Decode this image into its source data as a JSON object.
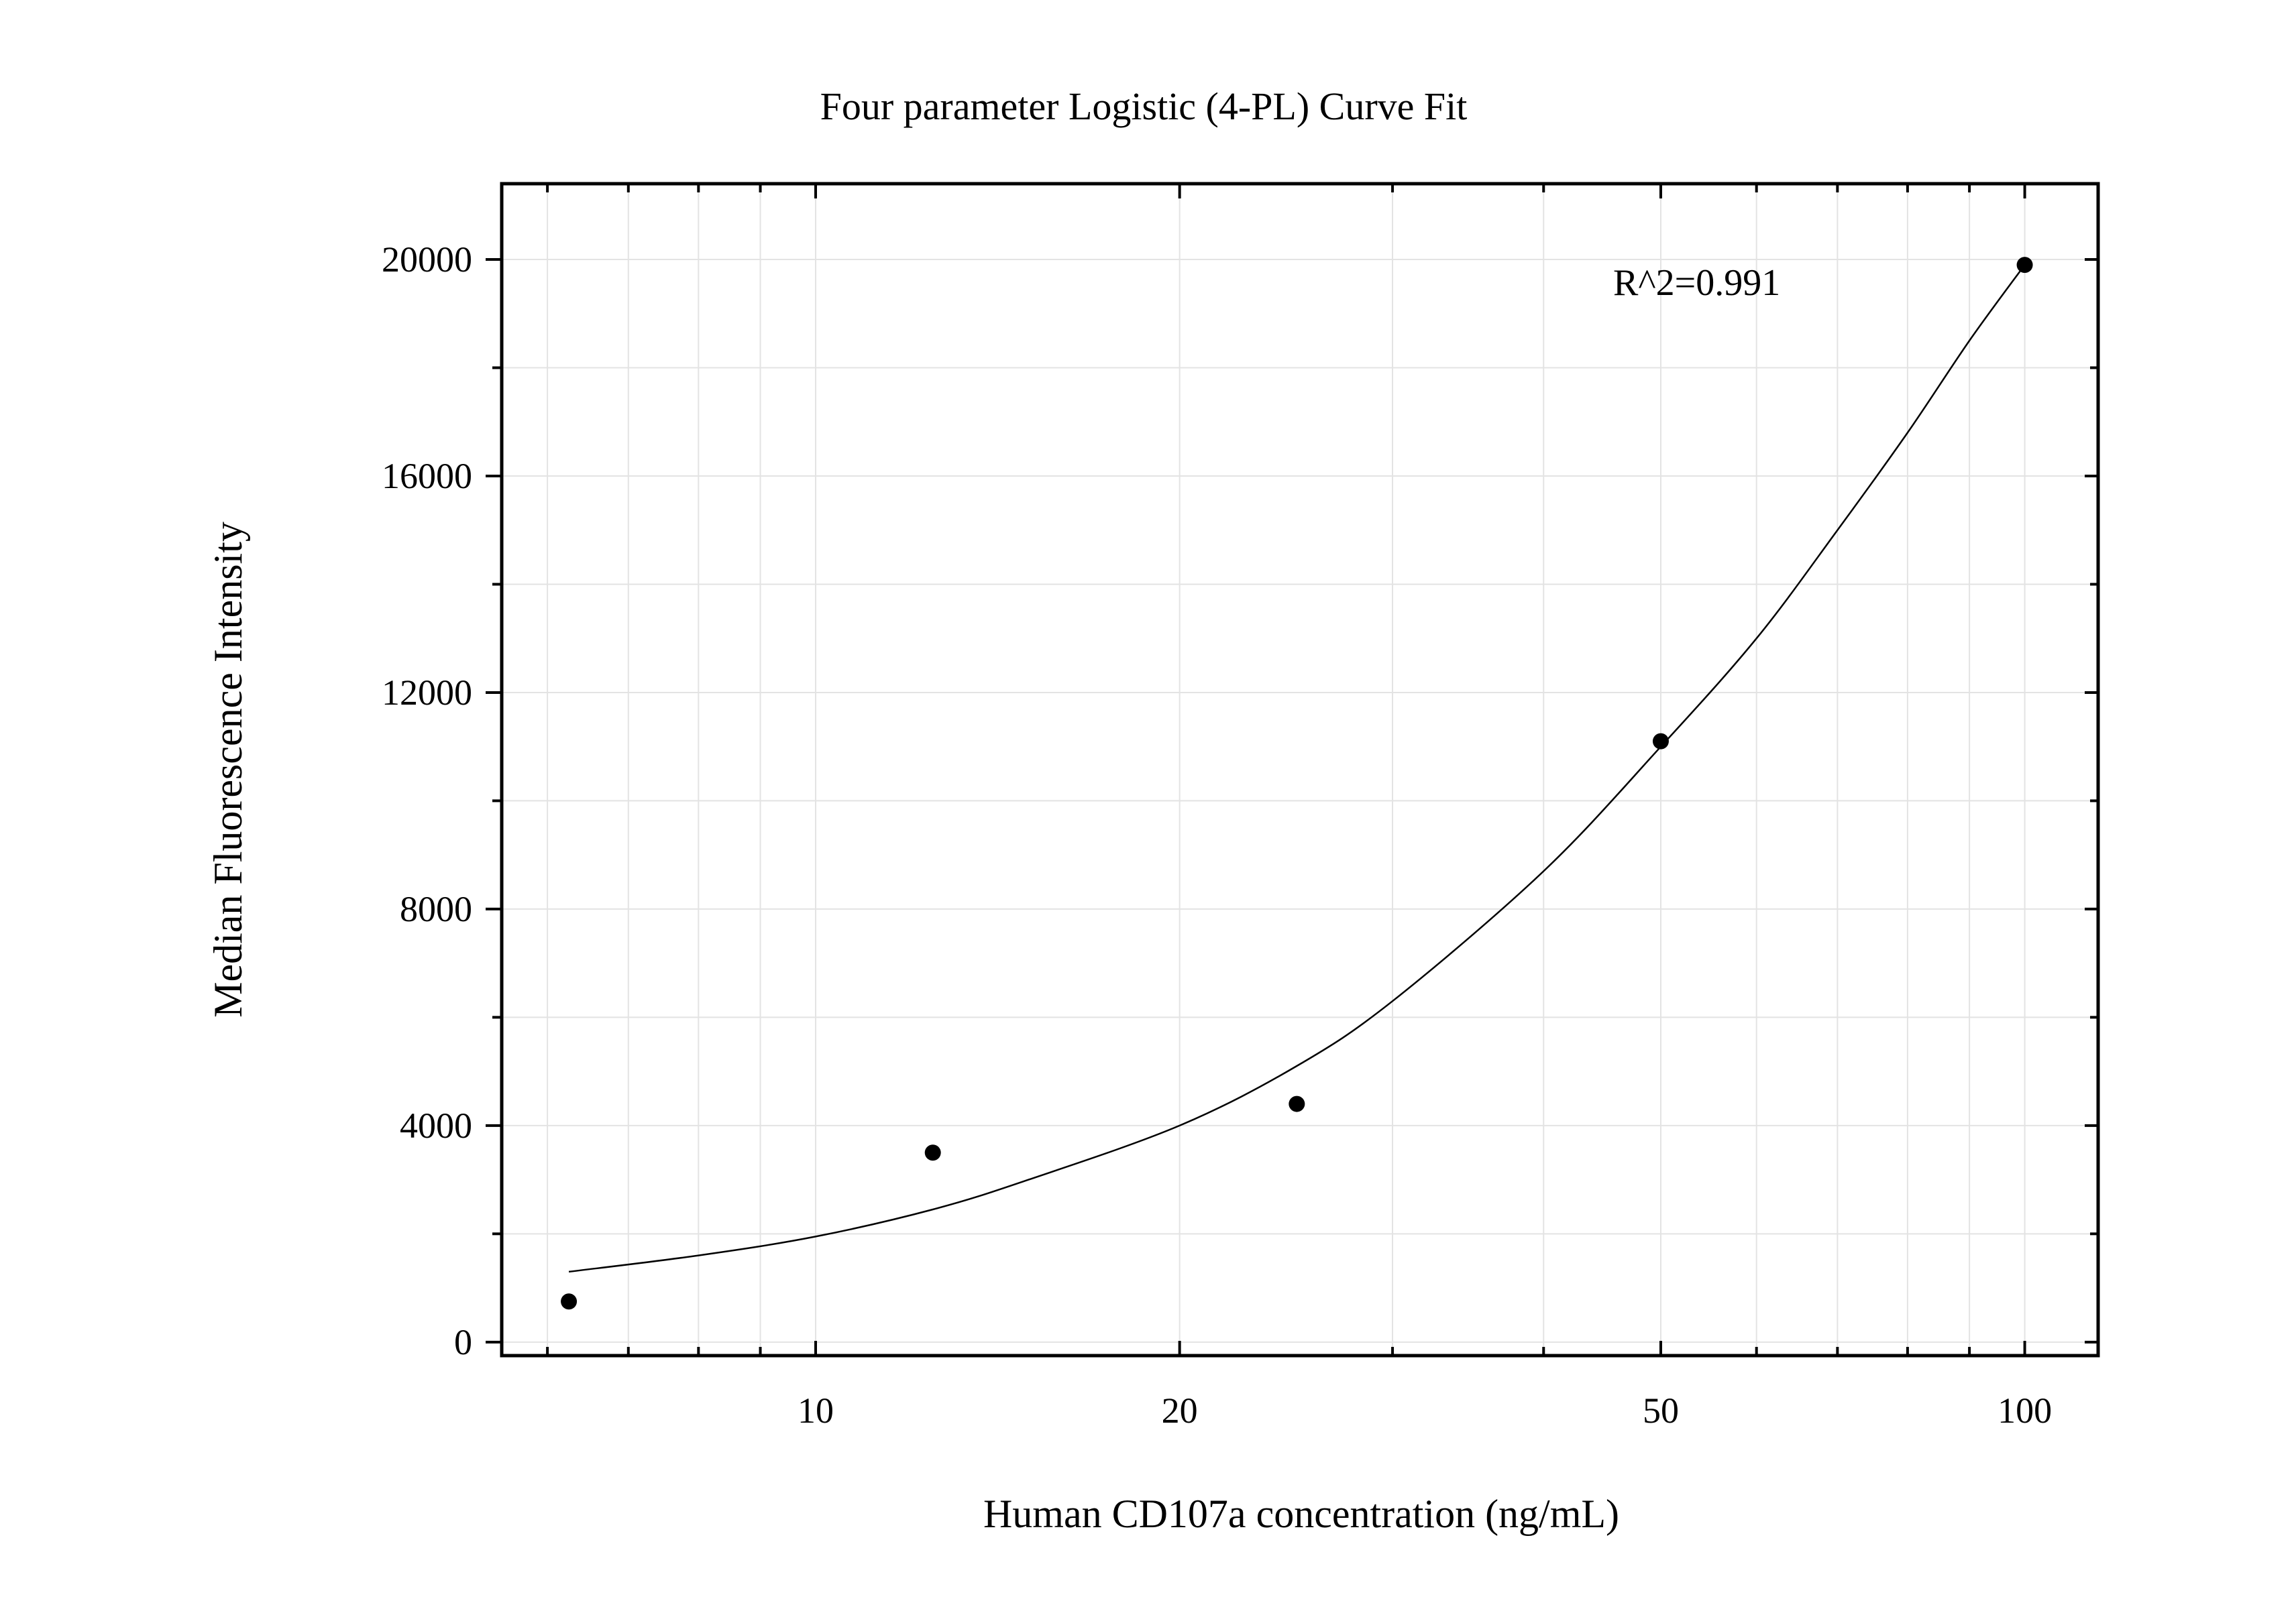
{
  "chart_data": {
    "type": "scatter",
    "title": "Four parameter Logistic (4-PL) Curve Fit",
    "xlabel": "Human CD107a concentration (ng/mL)",
    "ylabel": "Median Fluorescence Intensity",
    "x_scale": "log",
    "xlim": [
      5.5,
      115
    ],
    "ylim": [
      -250,
      21400
    ],
    "x_ticks": [
      10,
      20,
      50,
      100
    ],
    "x_tick_labels": [
      "10",
      "20",
      "50",
      "100"
    ],
    "y_ticks": [
      0,
      4000,
      8000,
      12000,
      16000,
      20000
    ],
    "y_tick_labels": [
      "0",
      "4000",
      "8000",
      "12000",
      "16000",
      "20000"
    ],
    "grid": true,
    "annotation": "R^2=0.991",
    "points": [
      {
        "x": 6.25,
        "y": 750
      },
      {
        "x": 12.5,
        "y": 3500
      },
      {
        "x": 25,
        "y": 4400
      },
      {
        "x": 50,
        "y": 11100
      },
      {
        "x": 100,
        "y": 19900
      }
    ],
    "fit_curve": [
      {
        "x": 6.25,
        "y": 1300
      },
      {
        "x": 8,
        "y": 1600
      },
      {
        "x": 10,
        "y": 1950
      },
      {
        "x": 12.5,
        "y": 2450
      },
      {
        "x": 15,
        "y": 3000
      },
      {
        "x": 20,
        "y": 4000
      },
      {
        "x": 25,
        "y": 5100
      },
      {
        "x": 30,
        "y": 6300
      },
      {
        "x": 40,
        "y": 8700
      },
      {
        "x": 50,
        "y": 11000
      },
      {
        "x": 60,
        "y": 13000
      },
      {
        "x": 70,
        "y": 15000
      },
      {
        "x": 80,
        "y": 16800
      },
      {
        "x": 90,
        "y": 18500
      },
      {
        "x": 100,
        "y": 19900
      }
    ]
  }
}
